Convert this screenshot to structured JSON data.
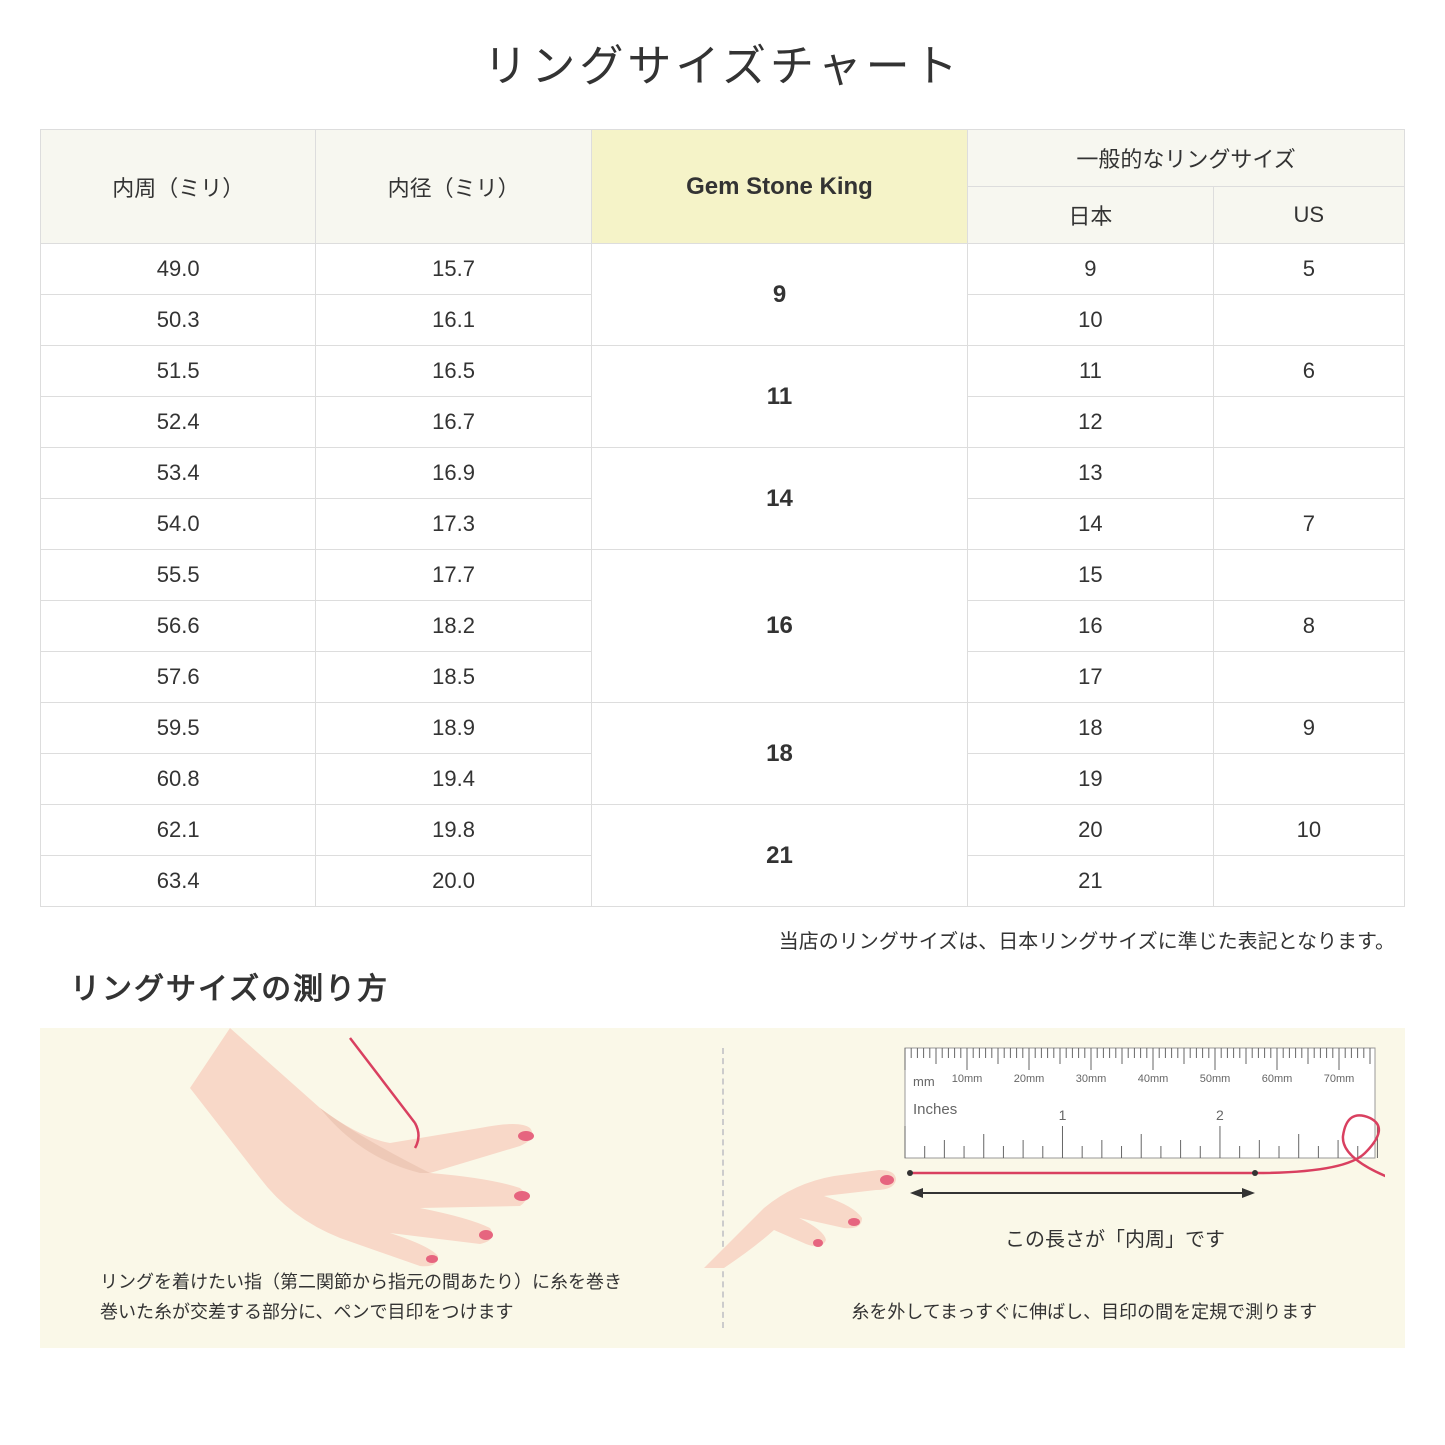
{
  "title": "リングサイズチャート",
  "headers": {
    "col1": "内周（ミリ）",
    "col2": "内径（ミリ）",
    "col3": "Gem Stone King",
    "col4_group": "一般的なリングサイズ",
    "col4_jp": "日本",
    "col4_us": "US"
  },
  "rows": [
    {
      "c": "49.0",
      "d": "15.7",
      "g": "9",
      "grows": 2,
      "jp": "9",
      "us": "5"
    },
    {
      "c": "50.3",
      "d": "16.1",
      "jp": "10",
      "us": ""
    },
    {
      "c": "51.5",
      "d": "16.5",
      "g": "11",
      "grows": 2,
      "jp": "11",
      "us": "6"
    },
    {
      "c": "52.4",
      "d": "16.7",
      "jp": "12",
      "us": ""
    },
    {
      "c": "53.4",
      "d": "16.9",
      "g": "14",
      "grows": 2,
      "jp": "13",
      "us": ""
    },
    {
      "c": "54.0",
      "d": "17.3",
      "jp": "14",
      "us": "7"
    },
    {
      "c": "55.5",
      "d": "17.7",
      "g": "16",
      "grows": 3,
      "jp": "15",
      "us": ""
    },
    {
      "c": "56.6",
      "d": "18.2",
      "jp": "16",
      "us": "8"
    },
    {
      "c": "57.6",
      "d": "18.5",
      "jp": "17",
      "us": ""
    },
    {
      "c": "59.5",
      "d": "18.9",
      "g": "18",
      "grows": 2,
      "jp": "18",
      "us": "9"
    },
    {
      "c": "60.8",
      "d": "19.4",
      "jp": "19",
      "us": ""
    },
    {
      "c": "62.1",
      "d": "19.8",
      "g": "21",
      "grows": 2,
      "jp": "20",
      "us": "10"
    },
    {
      "c": "63.4",
      "d": "20.0",
      "jp": "21",
      "us": ""
    }
  ],
  "note": "当店のリングサイズは、日本リングサイズに準じた表記となります。",
  "subtitle": "リングサイズの測り方",
  "instruction_left": "リングを着けたい指（第二関節から指元の間あたり）に糸を巻き\n巻いた糸が交差する部分に、ペンで目印をつけます",
  "instruction_right": "糸を外してまっすぐに伸ばし、目印の間を定規で測ります",
  "ruler_caption": "この長さが「内周」です",
  "ruler": {
    "mm_label": "mm",
    "inches_label": "Inches",
    "mm_ticks": [
      "10mm",
      "20mm",
      "30mm",
      "40mm",
      "50mm",
      "60mm",
      "70mm"
    ],
    "inch_major": [
      "1",
      "2"
    ]
  },
  "colors": {
    "background": "#ffffff",
    "panel_bg": "#faf8e8",
    "header_bg": "#f7f7f0",
    "highlight_bg": "#f5f3c8",
    "border": "#dddddd",
    "text": "#333333",
    "skin": "#f8d8c8",
    "skin_dark": "#e8c0ac",
    "nail": "#e6657f",
    "thread": "#d94060",
    "ruler_body": "#ffffff",
    "ruler_tick": "#666666"
  }
}
